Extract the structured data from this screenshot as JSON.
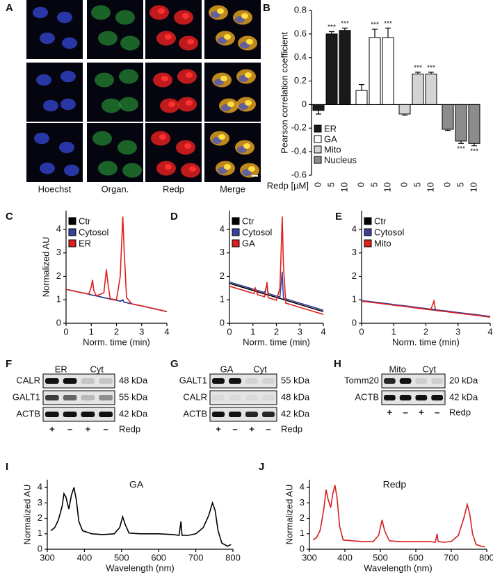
{
  "panel_labels": [
    "A",
    "B",
    "C",
    "D",
    "E",
    "F",
    "G",
    "H",
    "I",
    "J"
  ],
  "microscopy": {
    "columns": [
      "Hoechst",
      "Organ.",
      "Redp",
      "Merge"
    ]
  },
  "chart_data": [
    {
      "type": "bar",
      "y_label": "Pearson correlation coefficient",
      "x_label": "Redp [µM]",
      "categories": [
        "0",
        "5",
        "10",
        "0",
        "5",
        "10",
        "0",
        "5",
        "10",
        "0",
        "5",
        "10"
      ],
      "ylim": [
        -0.6,
        0.8
      ],
      "yticks": [
        -0.6,
        -0.4,
        -0.2,
        0,
        0.2,
        0.4,
        0.6,
        0.8
      ],
      "legend": "lower left",
      "series": [
        {
          "name": "ER",
          "color": "#1a1a1a",
          "values": [
            -0.05,
            0.6,
            0.63,
            null,
            null,
            null,
            null,
            null,
            null,
            null,
            null,
            null
          ],
          "errors": [
            0.03,
            0.02,
            0.02,
            null,
            null,
            null,
            null,
            null,
            null,
            null,
            null,
            null
          ],
          "significance": [
            null,
            "***",
            "***",
            null,
            null,
            null,
            null,
            null,
            null,
            null,
            null,
            null
          ]
        },
        {
          "name": "GA",
          "color": "#ffffff",
          "values": [
            null,
            null,
            null,
            0.12,
            0.57,
            0.57,
            null,
            null,
            null,
            null,
            null,
            null
          ],
          "errors": [
            null,
            null,
            null,
            0.05,
            0.07,
            0.08,
            null,
            null,
            null,
            null,
            null,
            null
          ],
          "significance": [
            null,
            null,
            null,
            null,
            "***",
            "***",
            null,
            null,
            null,
            null,
            null,
            null
          ]
        },
        {
          "name": "Mito",
          "color": "#d4d4d4",
          "values": [
            null,
            null,
            null,
            null,
            null,
            null,
            -0.08,
            0.26,
            0.26,
            null,
            null,
            null
          ],
          "errors": [
            null,
            null,
            null,
            null,
            null,
            null,
            0.01,
            0.015,
            0.015,
            null,
            null,
            null
          ],
          "significance": [
            null,
            null,
            null,
            null,
            null,
            null,
            null,
            "***",
            "***",
            null,
            null,
            null
          ]
        },
        {
          "name": "Nucleus",
          "color": "#8c8c8c",
          "values": [
            null,
            null,
            null,
            null,
            null,
            null,
            null,
            null,
            null,
            -0.21,
            -0.31,
            -0.33
          ],
          "errors": [
            null,
            null,
            null,
            null,
            null,
            null,
            null,
            null,
            null,
            0.01,
            0.02,
            0.02
          ],
          "significance": [
            null,
            null,
            null,
            null,
            null,
            null,
            null,
            null,
            null,
            null,
            "***",
            "***"
          ]
        }
      ]
    },
    {
      "type": "line",
      "y_label": "Normalized AU",
      "x_label": "Norm. time (min)",
      "xlim": [
        0,
        4
      ],
      "ylim": [
        0,
        4.8
      ],
      "xticks": [
        0,
        1,
        2,
        3,
        4
      ],
      "yticks": [
        0,
        1,
        2,
        3,
        4
      ],
      "legend": "upper left",
      "x": [
        0,
        0.5,
        0.9,
        1.0,
        1.05,
        1.1,
        1.2,
        1.5,
        1.6,
        1.65,
        1.75,
        2.0,
        2.15,
        2.25,
        2.3,
        2.4,
        2.6,
        3,
        3.5,
        4
      ],
      "series": [
        {
          "name": "Ctr",
          "color": "#000000",
          "values": [
            1.45,
            1.33,
            1.24,
            1.21,
            1.2,
            1.19,
            1.17,
            1.09,
            1.07,
            1.06,
            1.03,
            0.98,
            0.94,
            1.0,
            0.9,
            0.88,
            0.83,
            0.74,
            0.62,
            0.5
          ]
        },
        {
          "name": "Cytosol",
          "color": "#3a3f9b",
          "values": [
            1.45,
            1.33,
            1.24,
            1.21,
            1.2,
            1.19,
            1.17,
            1.09,
            1.07,
            1.06,
            1.03,
            0.98,
            0.94,
            0.98,
            0.9,
            0.88,
            0.83,
            0.74,
            0.62,
            0.5
          ]
        },
        {
          "name": "ER",
          "color": "#e0201e",
          "values": [
            1.45,
            1.33,
            1.24,
            1.55,
            1.85,
            1.4,
            1.17,
            1.3,
            2.3,
            1.8,
            1.05,
            1.0,
            2.0,
            4.55,
            3.2,
            1.1,
            0.83,
            0.74,
            0.62,
            0.5
          ]
        }
      ]
    },
    {
      "type": "line",
      "x_label": "Norm. time (min)",
      "xlim": [
        0,
        4
      ],
      "ylim": [
        0,
        4.8
      ],
      "xticks": [
        0,
        1,
        2,
        3,
        4
      ],
      "yticks": [
        0,
        1,
        2,
        3,
        4
      ],
      "legend": "upper left",
      "x": [
        0,
        0.5,
        0.9,
        1.0,
        1.05,
        1.1,
        1.2,
        1.5,
        1.6,
        1.65,
        1.75,
        2.0,
        2.15,
        2.25,
        2.3,
        2.4,
        2.6,
        3,
        3.5,
        4
      ],
      "series": [
        {
          "name": "Ctr",
          "color": "#000000",
          "values": [
            1.7,
            1.55,
            1.43,
            1.4,
            1.39,
            1.37,
            1.34,
            1.25,
            1.22,
            1.21,
            1.18,
            1.1,
            1.06,
            1.03,
            1.01,
            0.98,
            0.92,
            0.8,
            0.65,
            0.5
          ]
        },
        {
          "name": "Cytosol",
          "color": "#3a3f9b",
          "values": [
            1.76,
            1.61,
            1.49,
            1.46,
            1.45,
            1.43,
            1.4,
            1.31,
            1.65,
            1.27,
            1.24,
            1.16,
            1.12,
            2.2,
            1.07,
            1.04,
            0.98,
            0.86,
            0.71,
            0.56
          ]
        },
        {
          "name": "GA",
          "color": "#e0201e",
          "values": [
            1.58,
            1.43,
            1.31,
            1.28,
            1.27,
            1.5,
            1.22,
            1.13,
            1.75,
            1.09,
            1.06,
            0.98,
            1.5,
            4.55,
            2.5,
            0.86,
            0.8,
            0.68,
            0.53,
            0.38
          ]
        }
      ]
    },
    {
      "type": "line",
      "x_label": "Norm. time (min)",
      "xlim": [
        0,
        4
      ],
      "ylim": [
        0,
        4.8
      ],
      "xticks": [
        0,
        1,
        2,
        3,
        4
      ],
      "yticks": [
        0,
        1,
        2,
        3,
        4
      ],
      "legend": "upper left",
      "x": [
        0,
        0.5,
        0.9,
        1.0,
        1.05,
        1.1,
        1.2,
        1.5,
        1.6,
        1.65,
        1.75,
        2.0,
        2.15,
        2.25,
        2.3,
        2.4,
        2.6,
        3,
        3.5,
        4
      ],
      "series": [
        {
          "name": "Ctr",
          "color": "#000000",
          "values": [
            0.95,
            0.87,
            0.8,
            0.78,
            0.77,
            0.76,
            0.75,
            0.7,
            0.68,
            0.67,
            0.65,
            0.61,
            0.58,
            0.57,
            0.56,
            0.54,
            0.51,
            0.44,
            0.36,
            0.27
          ]
        },
        {
          "name": "Cytosol",
          "color": "#3a3f9b",
          "values": [
            0.97,
            0.89,
            0.82,
            0.8,
            0.79,
            0.78,
            0.77,
            0.72,
            0.7,
            0.69,
            0.67,
            0.63,
            0.6,
            0.59,
            0.58,
            0.56,
            0.53,
            0.46,
            0.38,
            0.29
          ]
        },
        {
          "name": "Mito",
          "color": "#e0201e",
          "values": [
            0.94,
            0.86,
            0.79,
            0.77,
            0.76,
            0.75,
            0.74,
            0.69,
            0.67,
            0.66,
            0.64,
            0.6,
            0.57,
            0.95,
            0.55,
            0.53,
            0.5,
            0.43,
            0.35,
            0.26
          ]
        }
      ]
    },
    {
      "type": "line",
      "title": "GA",
      "y_label": "Normalized AU",
      "x_label": "Wavelength (nm)",
      "xlim": [
        300,
        800
      ],
      "ylim": [
        0,
        4.5
      ],
      "xticks": [
        300,
        400,
        500,
        600,
        700,
        800
      ],
      "yticks": [
        0,
        1,
        2,
        3,
        4
      ],
      "color": "#000000",
      "x": [
        310,
        320,
        330,
        340,
        345,
        350,
        358,
        365,
        372,
        378,
        385,
        395,
        420,
        450,
        480,
        495,
        503,
        510,
        520,
        550,
        600,
        640,
        655,
        660,
        663,
        680,
        700,
        720,
        735,
        745,
        752,
        760,
        770,
        785,
        795
      ],
      "values": [
        1.2,
        1.4,
        1.9,
        2.8,
        3.6,
        3.4,
        2.6,
        3.5,
        4.0,
        3.2,
        1.8,
        1.2,
        1.0,
        0.95,
        1.0,
        1.4,
        2.1,
        1.6,
        1.05,
        1.0,
        1.0,
        0.95,
        0.9,
        1.8,
        0.9,
        0.9,
        1.0,
        1.4,
        2.2,
        3.0,
        2.5,
        1.2,
        0.4,
        0.2,
        0.3
      ]
    },
    {
      "type": "line",
      "title": "Redp",
      "y_label": "Normalized AU",
      "x_label": "Wavelength (nm)",
      "xlim": [
        300,
        800
      ],
      "ylim": [
        0,
        4.5
      ],
      "xticks": [
        300,
        400,
        500,
        600,
        700,
        800
      ],
      "yticks": [
        0,
        1,
        2,
        3,
        4
      ],
      "color": "#d62020",
      "x": [
        310,
        320,
        330,
        340,
        347,
        353,
        360,
        366,
        372,
        378,
        385,
        395,
        420,
        450,
        480,
        495,
        505,
        512,
        525,
        550,
        600,
        640,
        655,
        660,
        663,
        680,
        700,
        720,
        735,
        745,
        752,
        760,
        770,
        785,
        795
      ],
      "values": [
        0.6,
        0.75,
        1.2,
        2.5,
        3.85,
        3.2,
        2.7,
        3.6,
        4.15,
        3.3,
        1.5,
        0.6,
        0.55,
        0.5,
        0.5,
        0.9,
        1.9,
        1.2,
        0.55,
        0.5,
        0.5,
        0.5,
        0.45,
        1.0,
        0.5,
        0.45,
        0.5,
        0.9,
        2.0,
        2.9,
        2.3,
        1.0,
        0.3,
        0.2,
        0.15
      ]
    }
  ],
  "blots": [
    {
      "groups": [
        "ER",
        "Cyt"
      ],
      "rows": [
        {
          "label": "CALR",
          "size": "48 kDa"
        },
        {
          "label": "GALT1",
          "size": "55 kDa"
        },
        {
          "label": "ACTB",
          "size": "42 kDa"
        }
      ],
      "lanes": [
        "+",
        "–",
        "+",
        "–"
      ],
      "treatment": "Redp"
    },
    {
      "groups": [
        "GA",
        "Cyt"
      ],
      "rows": [
        {
          "label": "GALT1",
          "size": "55 kDa"
        },
        {
          "label": "CALR",
          "size": "48 kDa"
        },
        {
          "label": "ACTB",
          "size": "42 kDa"
        }
      ],
      "lanes": [
        "+",
        "–",
        "+",
        "–"
      ],
      "treatment": "Redp"
    },
    {
      "groups": [
        "Mito",
        "Cyt"
      ],
      "rows": [
        {
          "label": "Tomm20",
          "size": "20 kDa"
        },
        {
          "label": "ACTB",
          "size": "42 kDa"
        }
      ],
      "lanes": [
        "+",
        "–",
        "+",
        "–"
      ],
      "treatment": "Redp"
    }
  ]
}
